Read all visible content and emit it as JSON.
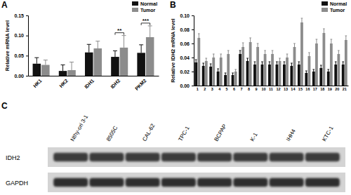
{
  "chart_data": [
    {
      "type": "bar",
      "title": "A",
      "y_label": "Relative mRNA level",
      "categories": [
        "HK1",
        "HK2",
        "IDH1",
        "IDH2",
        "PKM2"
      ],
      "series": [
        {
          "name": "Normal",
          "color": "#111111",
          "values": [
            0.03,
            0.012,
            0.058,
            0.047,
            0.057
          ],
          "errors": [
            0.015,
            0.015,
            0.02,
            0.015,
            0.02
          ]
        },
        {
          "name": "Tumor",
          "color": "#8c8c8c",
          "values": [
            0.027,
            0.014,
            0.068,
            0.07,
            0.096
          ],
          "errors": [
            0.012,
            0.02,
            0.018,
            0.03,
            0.028
          ]
        }
      ],
      "ylim": [
        0,
        0.15
      ],
      "yticks": [
        {
          "value": 0,
          "label": "0.00"
        },
        0.05,
        {
          "value": 0.1,
          "label": "0.10"
        },
        0.15
      ],
      "annotations": [
        {
          "text": "**",
          "category": "IDH2"
        },
        {
          "text": "***",
          "category": "PKM2"
        }
      ],
      "legend": "upper right",
      "grid": false
    },
    {
      "type": "bar",
      "title": "B",
      "y_label": "Relative IDH2 mRNA level",
      "categories": [
        "1",
        "2",
        "3",
        "4",
        "5",
        "6",
        "7",
        "8",
        "9",
        "10",
        "11",
        "12",
        "13",
        "14",
        "15",
        "16",
        "17",
        "18",
        "19",
        "20",
        "21"
      ],
      "series": [
        {
          "name": "Normal",
          "color": "#111111",
          "values": [
            0.033,
            0.028,
            0.027,
            0.02,
            0.015,
            0.015,
            0.045,
            0.035,
            0.03,
            0.03,
            0.03,
            0.03,
            0.03,
            0.028,
            0.03,
            0.018,
            0.02,
            0.025,
            0.02,
            0.03,
            0.03
          ],
          "errors": [
            0.004,
            0.004,
            0.004,
            0.004,
            0.003,
            0.003,
            0.005,
            0.004,
            0.004,
            0.004,
            0.004,
            0.004,
            0.004,
            0.004,
            0.004,
            0.003,
            0.003,
            0.004,
            0.003,
            0.004,
            0.004
          ]
        },
        {
          "name": "Tumor",
          "color": "#8c8c8c",
          "values": [
            0.068,
            0.035,
            0.04,
            0.04,
            0.045,
            0.02,
            0.055,
            0.062,
            0.055,
            0.045,
            0.045,
            0.035,
            0.04,
            0.055,
            0.09,
            0.042,
            0.06,
            0.075,
            0.06,
            0.045,
            0.065
          ],
          "errors": [
            0.006,
            0.004,
            0.005,
            0.005,
            0.005,
            0.003,
            0.006,
            0.006,
            0.005,
            0.005,
            0.005,
            0.004,
            0.005,
            0.005,
            0.006,
            0.005,
            0.006,
            0.006,
            0.006,
            0.005,
            0.006
          ]
        }
      ],
      "ylim": [
        0,
        0.1
      ],
      "yticks": [
        {
          "value": 0,
          "label": "0.00"
        },
        0.02,
        0.04,
        0.06,
        0.08,
        {
          "value": 0.1,
          "label": "0.10"
        }
      ],
      "legend": "upper right",
      "grid": false
    },
    {
      "type": "blot",
      "title": "C",
      "categories": [
        "Nthy-ori 3-1",
        "8505C",
        "CAL-62",
        "TPC-1",
        "BCPAP",
        "K-1",
        "IHH4",
        "KTC-1"
      ],
      "rows": [
        "IDH2",
        "GAPDH"
      ]
    }
  ]
}
